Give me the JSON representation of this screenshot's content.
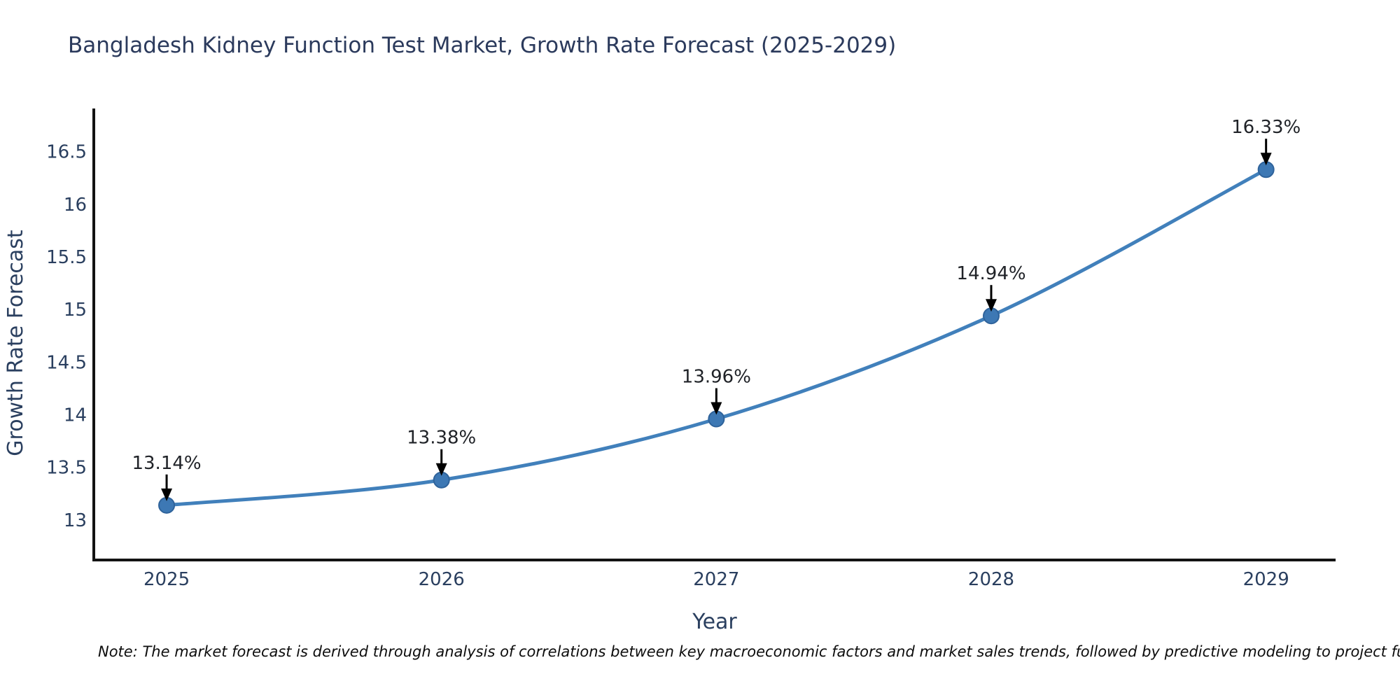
{
  "title": "Bangladesh Kidney Function Test Market, Growth Rate Forecast (2025-2029)",
  "note": "Note: The market forecast is derived through analysis of correlations between key macroeconomic factors and market sales trends, followed by predictive modeling to project future sales",
  "chart_data": {
    "type": "line",
    "title": "Bangladesh Kidney Function Test Market, Growth Rate Forecast (2025-2029)",
    "xlabel": "Year",
    "ylabel": "Growth Rate Forecast",
    "x": [
      2025,
      2026,
      2027,
      2028,
      2029
    ],
    "x_tick_labels": [
      "2025",
      "2026",
      "2027",
      "2028",
      "2029"
    ],
    "series": [
      {
        "name": "Growth Rate Forecast",
        "values": [
          13.14,
          13.38,
          13.96,
          14.94,
          16.33
        ]
      }
    ],
    "point_labels": [
      "13.14%",
      "13.38%",
      "13.96%",
      "14.94%",
      "16.33%"
    ],
    "y_ticks": [
      13,
      13.5,
      14,
      14.5,
      15,
      15.5,
      16,
      16.5
    ],
    "y_tick_labels": [
      "13",
      "13.5",
      "14",
      "14.5",
      "15",
      "15.5",
      "16",
      "16.5"
    ],
    "xlim": [
      2024.735,
      2029.253
    ],
    "ylim": [
      12.62,
      16.91
    ],
    "grid": false,
    "legend": "none",
    "line_shape": "spline",
    "colors": {
      "line": "#4180bb",
      "marker_fill": "#3d78b4",
      "marker_edge": "#2f639b",
      "axis_line": "#131313",
      "axis_text": "#2a3f5f",
      "annotation_text": "#202328",
      "arrow": "#000000",
      "title": "#2b3a5c"
    }
  }
}
